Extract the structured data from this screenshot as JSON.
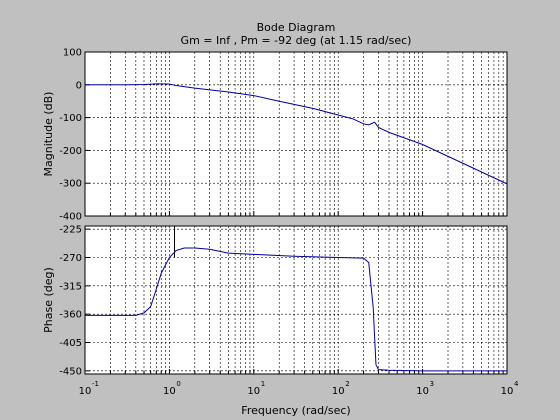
{
  "chart_data": [
    {
      "type": "line",
      "panel": "magnitude",
      "title": "Bode Diagram",
      "subtitle": "Gm = Inf ,  Pm = -92 deg (at 1.15 rad/sec)",
      "xlabel": "Frequency  (rad/sec)",
      "ylabel": "Magnitude (dB)",
      "xscale": "log",
      "xlim": [
        0.1,
        10000
      ],
      "ylim": [
        -400,
        100
      ],
      "xticks": [
        0.1,
        1,
        10,
        100,
        1000,
        10000
      ],
      "xtick_labels": [
        {
          "base": "10",
          "exp": "-1"
        },
        {
          "base": "10",
          "exp": "0"
        },
        {
          "base": "10",
          "exp": "1"
        },
        {
          "base": "10",
          "exp": "2"
        },
        {
          "base": "10",
          "exp": "3"
        },
        {
          "base": "10",
          "exp": "4"
        }
      ],
      "yticks": [
        100,
        0,
        -100,
        -200,
        -300,
        -400
      ],
      "ytick_labels": [
        "100",
        "0",
        "-100",
        "-200",
        "-300",
        "-400"
      ],
      "grid": true,
      "series": [
        {
          "color": "#0000a0",
          "x": [
            0.1,
            0.3,
            0.5,
            0.7,
            0.9,
            1.0,
            1.2,
            2,
            5,
            10,
            20,
            50,
            100,
            150,
            200,
            230,
            250,
            270,
            300,
            400,
            1000,
            10000
          ],
          "y": [
            0,
            0,
            1,
            3,
            3,
            2,
            -2,
            -10,
            -22,
            -33,
            -50,
            -72,
            -92,
            -104,
            -119,
            -122,
            -118,
            -114,
            -130,
            -145,
            -182,
            -302
          ]
        }
      ]
    },
    {
      "type": "line",
      "panel": "phase",
      "xlabel": "Frequency  (rad/sec)",
      "ylabel": "Phase (deg)",
      "xscale": "log",
      "xlim": [
        0.1,
        10000
      ],
      "ylim": [
        -455,
        -220
      ],
      "xticks": [
        0.1,
        1,
        10,
        100,
        1000,
        10000
      ],
      "yticks": [
        -225,
        -270,
        -315,
        -360,
        -405,
        -450
      ],
      "ytick_labels": [
        "-225",
        "-270",
        "-315",
        "-360",
        "-405",
        "-450"
      ],
      "grid": true,
      "series": [
        {
          "color": "#0000a0",
          "x": [
            0.1,
            0.2,
            0.4,
            0.5,
            0.6,
            0.7,
            0.8,
            1.0,
            1.2,
            1.5,
            2,
            3,
            5,
            10,
            30,
            100,
            200,
            230,
            260,
            280,
            300,
            400,
            1000,
            10000
          ],
          "y": [
            -362,
            -362,
            -362,
            -358,
            -348,
            -320,
            -295,
            -270,
            -259,
            -255,
            -255,
            -257,
            -263,
            -265,
            -268,
            -270,
            -271,
            -278,
            -350,
            -440,
            -448,
            -449,
            -450,
            -450
          ]
        }
      ],
      "marker_line": {
        "x": 1.15,
        "y_from": -220,
        "y_to": -270
      }
    }
  ]
}
